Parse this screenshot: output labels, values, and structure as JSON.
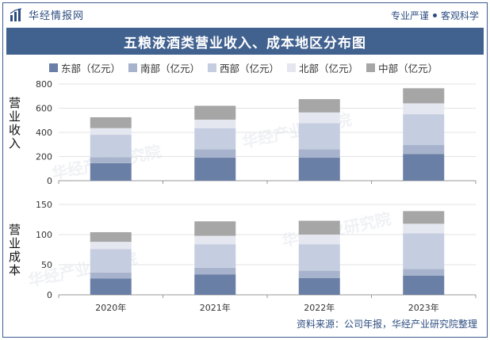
{
  "header": {
    "brand": "华经情报网",
    "slogan_left": "专业严谨",
    "slogan_right": "客观科学"
  },
  "title": "五粮液酒类营业收入、成本地区分布图",
  "source": "资料来源：公司年报，华经产业研究院整理",
  "watermark": "华经产业研究院",
  "colors": {
    "east": "#6a7fa6",
    "south": "#a7b3cc",
    "west": "#c5cde0",
    "north": "#e4e7ef",
    "central": "#a6a6a6",
    "brand": "#2d4d80"
  },
  "chart_data": [
    {
      "type": "bar",
      "stacked": true,
      "ylabel": "营业收入",
      "categories": [
        "2020年",
        "2021年",
        "2022年",
        "2023年"
      ],
      "ylim": [
        0,
        800
      ],
      "yticks": [
        0,
        200,
        400,
        600,
        800
      ],
      "series": [
        {
          "name": "东部（亿元）",
          "values": [
            145,
            190,
            190,
            220
          ]
        },
        {
          "name": "南部（亿元）",
          "values": [
            50,
            70,
            70,
            75
          ]
        },
        {
          "name": "西部（亿元）",
          "values": [
            185,
            175,
            215,
            255
          ]
        },
        {
          "name": "北部（亿元）",
          "values": [
            55,
            70,
            90,
            90
          ]
        },
        {
          "name": "中部（亿元）",
          "values": [
            90,
            115,
            110,
            125
          ]
        }
      ]
    },
    {
      "type": "bar",
      "stacked": true,
      "ylabel": "营业成本",
      "categories": [
        "2020年",
        "2021年",
        "2022年",
        "2023年"
      ],
      "ylim": [
        0,
        150
      ],
      "yticks": [
        0,
        50,
        100,
        150
      ],
      "series": [
        {
          "name": "东部（亿元）",
          "values": [
            27,
            34,
            28,
            32
          ]
        },
        {
          "name": "南部（亿元）",
          "values": [
            10,
            11,
            12,
            11
          ]
        },
        {
          "name": "西部（亿元）",
          "values": [
            39,
            39,
            44,
            59
          ]
        },
        {
          "name": "北部（亿元）",
          "values": [
            12,
            14,
            16,
            16
          ]
        },
        {
          "name": "中部（亿元）",
          "values": [
            16,
            24,
            23,
            21
          ]
        }
      ]
    }
  ]
}
